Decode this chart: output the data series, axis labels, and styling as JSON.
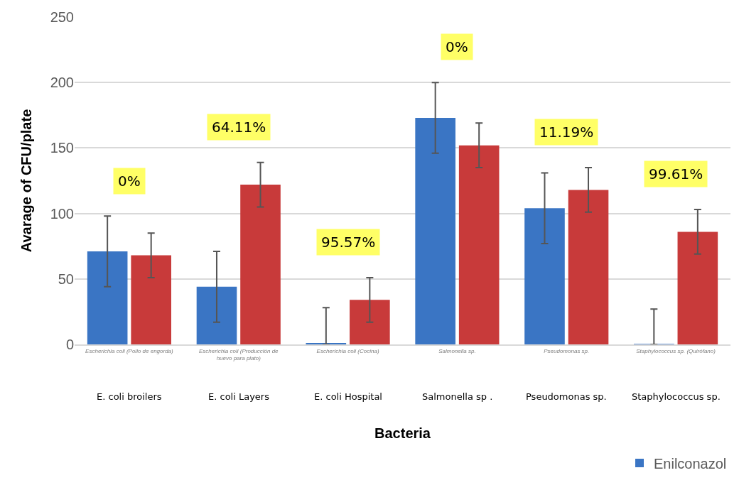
{
  "chart_data": {
    "type": "bar",
    "xlabel": "Bacteria",
    "ylabel": "Avarage of CFU/plate",
    "categories": [
      "Escherichia coli (Pollo de engorda)",
      "Escherichia coli (Producción de huevo para plato)",
      "Escherichia coli (Cocina)",
      "Salmonella sp.",
      "Pseudomonas sp.",
      "Staphylococcus sp. (Quirófano)"
    ],
    "series": [
      {
        "name": "Enilconazol",
        "color": "#3a75c4",
        "values": [
          71,
          44,
          1,
          173,
          104,
          0
        ],
        "errors": [
          27,
          27,
          [
            0,
            28
          ],
          27,
          27,
          [
            0,
            27
          ]
        ]
      },
      {
        "color": "#c83a3a",
        "values": [
          68,
          122,
          34,
          152,
          118,
          86
        ],
        "errors": [
          17,
          17,
          17,
          17,
          17,
          17
        ]
      }
    ],
    "ylim": [
      0,
      250
    ],
    "yticks": [
      0,
      50,
      100,
      150,
      200,
      250
    ],
    "grid": "y",
    "legend": "bottom right",
    "annotations": [
      "0%",
      "64.11%",
      "95.57%",
      "0%",
      "11.19%",
      "99.61%",
      "E. coli broilers",
      "E. coli Layers",
      "E. coli Hospital",
      "Salmonella sp .",
      "Pseudomonas sp.",
      "Staphylococcus sp."
    ]
  }
}
